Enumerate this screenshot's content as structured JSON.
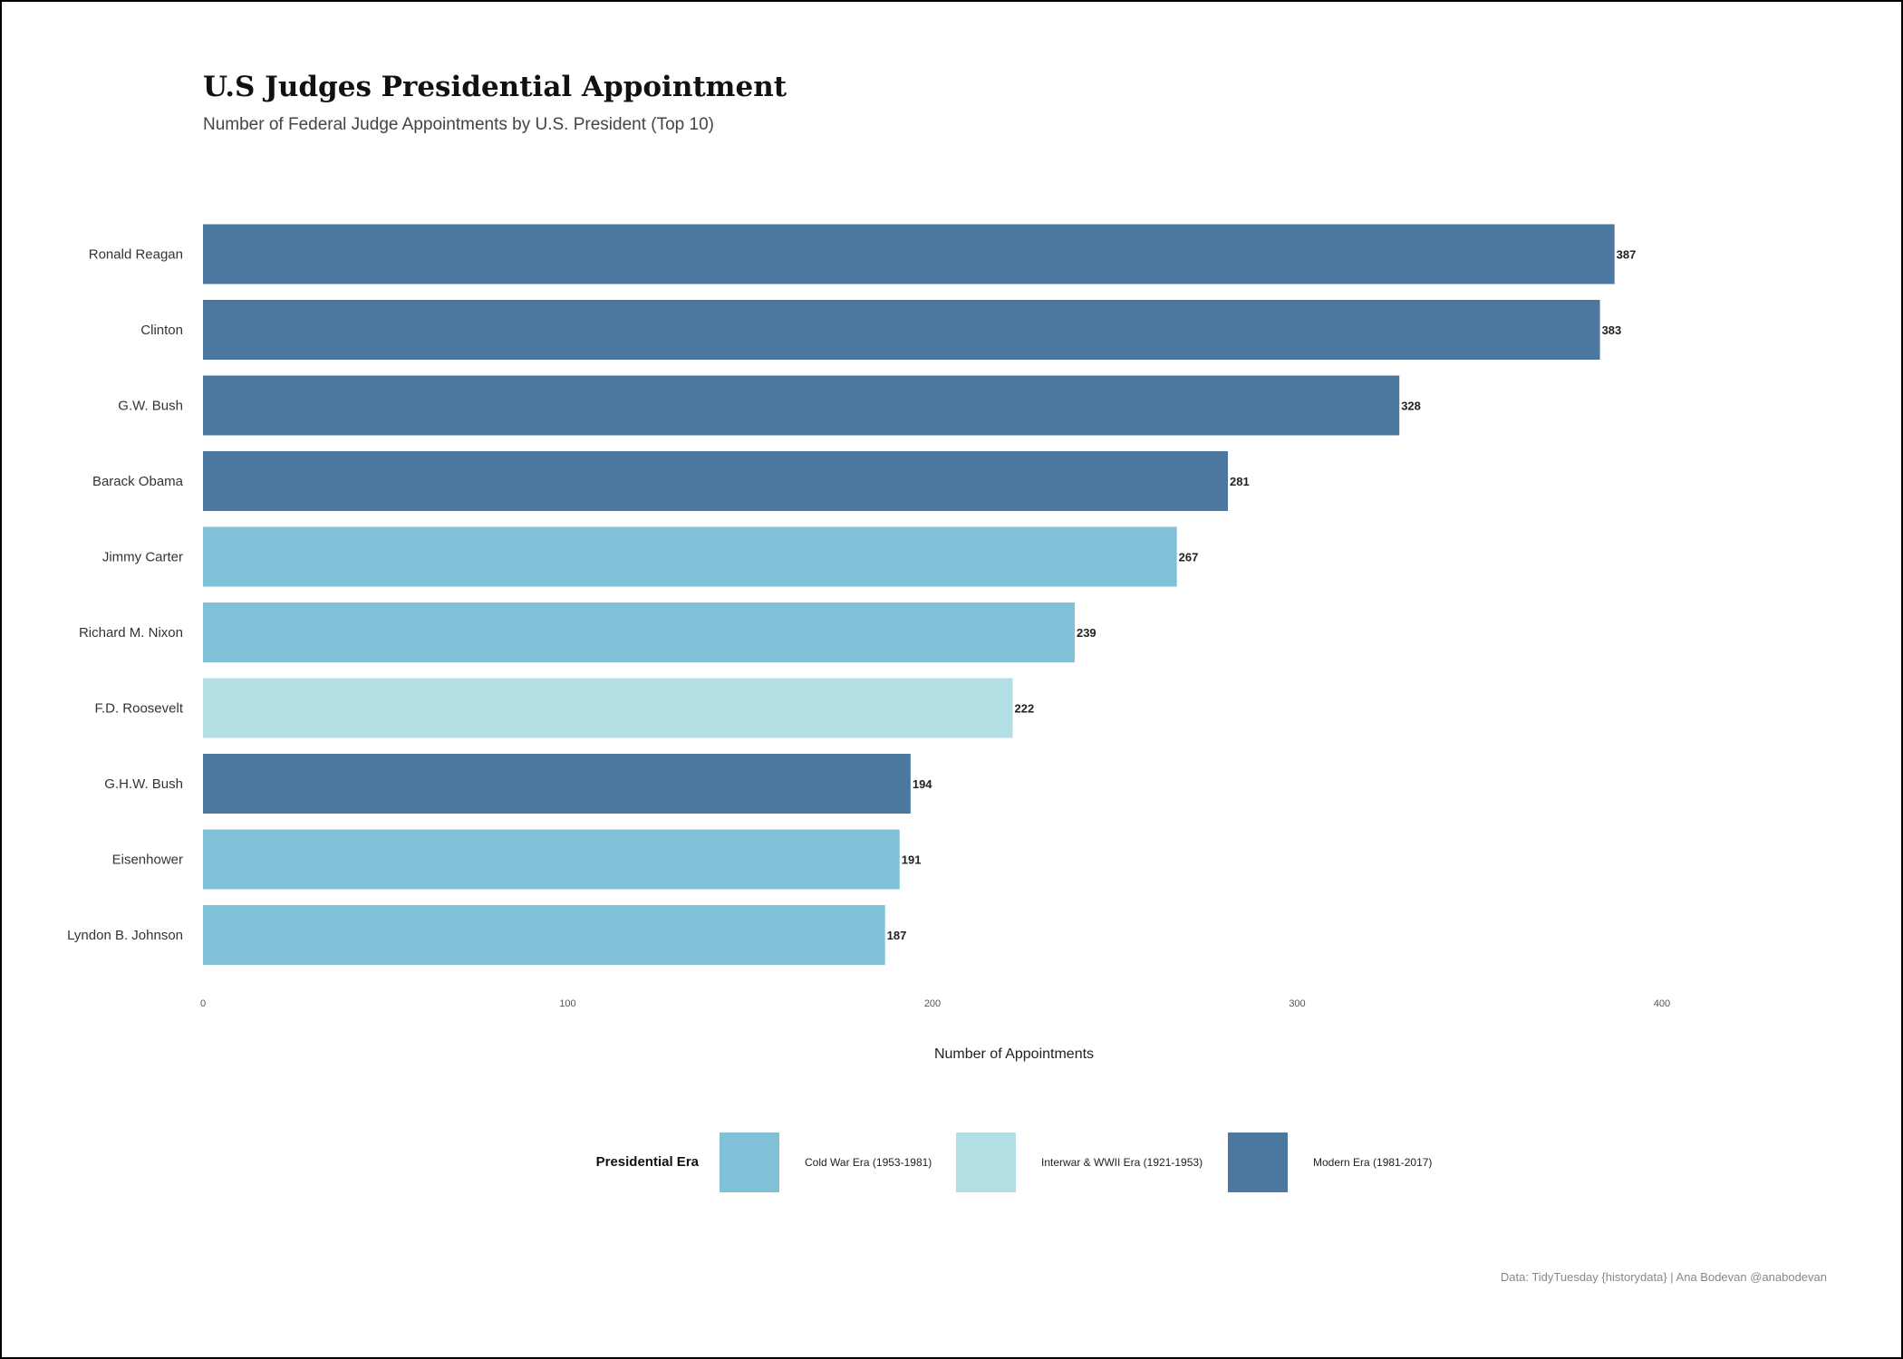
{
  "chart_data": {
    "type": "bar",
    "orientation": "horizontal",
    "title": "U.S Judges Presidential Appointment",
    "subtitle": "Number of Federal Judge Appointments by U.S. President (Top 10)",
    "xlabel": "Number of Appointments",
    "ylabel": "",
    "xlim": [
      0,
      430
    ],
    "xticks": [
      0,
      100,
      200,
      300,
      400
    ],
    "grid": false,
    "categories": [
      "Ronald Reagan",
      "Clinton",
      "G.W. Bush",
      "Barack Obama",
      "Jimmy Carter",
      "Richard M. Nixon",
      "F.D. Roosevelt",
      "G.H.W. Bush",
      "Eisenhower",
      "Lyndon B. Johnson"
    ],
    "values": [
      387,
      383,
      328,
      281,
      267,
      239,
      222,
      194,
      191,
      187
    ],
    "eras": [
      "Modern Era (1981-2017)",
      "Modern Era (1981-2017)",
      "Modern Era (1981-2017)",
      "Modern Era (1981-2017)",
      "Cold War Era (1953-1981)",
      "Cold War Era (1953-1981)",
      "Interwar & WWII Era (1921-1953)",
      "Modern Era (1981-2017)",
      "Cold War Era (1953-1981)",
      "Cold War Era (1953-1981)"
    ],
    "legend": {
      "title": "Presidential Era",
      "placement": "bottom",
      "items": [
        {
          "label": "Cold War Era (1953-1981)",
          "color": "#80C1D8"
        },
        {
          "label": "Interwar & WWII Era (1921-1953)",
          "color": "#B3DFE4"
        },
        {
          "label": "Modern Era (1981-2017)",
          "color": "#4C779F"
        }
      ]
    },
    "caption": "Data: TidyTuesday {historydata} | Ana Bodevan @anabodevan"
  }
}
